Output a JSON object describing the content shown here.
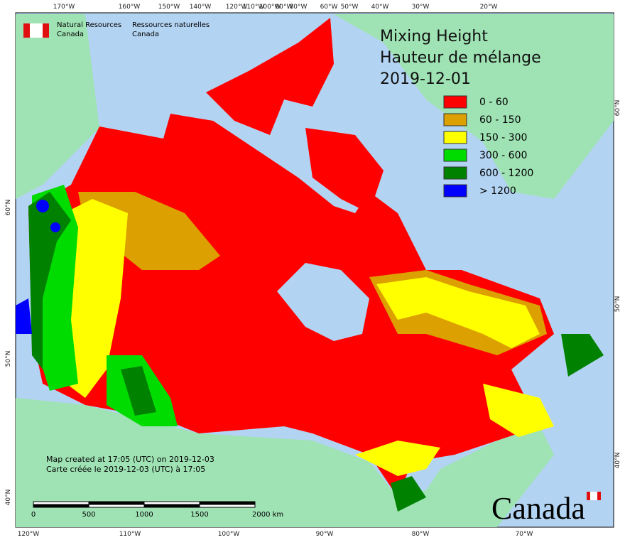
{
  "agency": {
    "en_line1": "Natural Resources",
    "en_line2": "Canada",
    "fr_line1": "Ressources naturelles",
    "fr_line2": "Canada"
  },
  "title": {
    "line1": "Mixing Height",
    "line2": "Hauteur de mélange",
    "date": "2019-12-01"
  },
  "legend": [
    {
      "label": "0 - 60",
      "color": "#ff0000"
    },
    {
      "label": "60 - 150",
      "color": "#dca000"
    },
    {
      "label": "150 - 300",
      "color": "#ffff00"
    },
    {
      "label": "300 - 600",
      "color": "#00dc00"
    },
    {
      "label": "600 - 1200",
      "color": "#008200"
    },
    {
      "label": "> 1200",
      "color": "#0000ff"
    }
  ],
  "top_axis": [
    "170°W",
    "160°W",
    "150°W",
    "140°W",
    "120°W",
    "110°W",
    "100°W",
    "90°W",
    "80°W",
    "60°W",
    "50°W",
    "40°W",
    "30°W",
    "20°W"
  ],
  "bottom_axis": [
    "120°W",
    "110°W",
    "100°W",
    "90°W",
    "80°W",
    "70°W"
  ],
  "left_axis": [
    "60°N",
    "50°N",
    "40°N"
  ],
  "right_axis": [
    "60°N",
    "50°N",
    "40°N"
  ],
  "notes": {
    "en": "Map created at 17:05 (UTC) on 2019-12-03",
    "fr": "Carte créée le 2019-12-03 (UTC) à 17:05"
  },
  "scale_bar": [
    "0",
    "500",
    "1000",
    "1500",
    "2000 km"
  ],
  "wordmark": "Canada"
}
